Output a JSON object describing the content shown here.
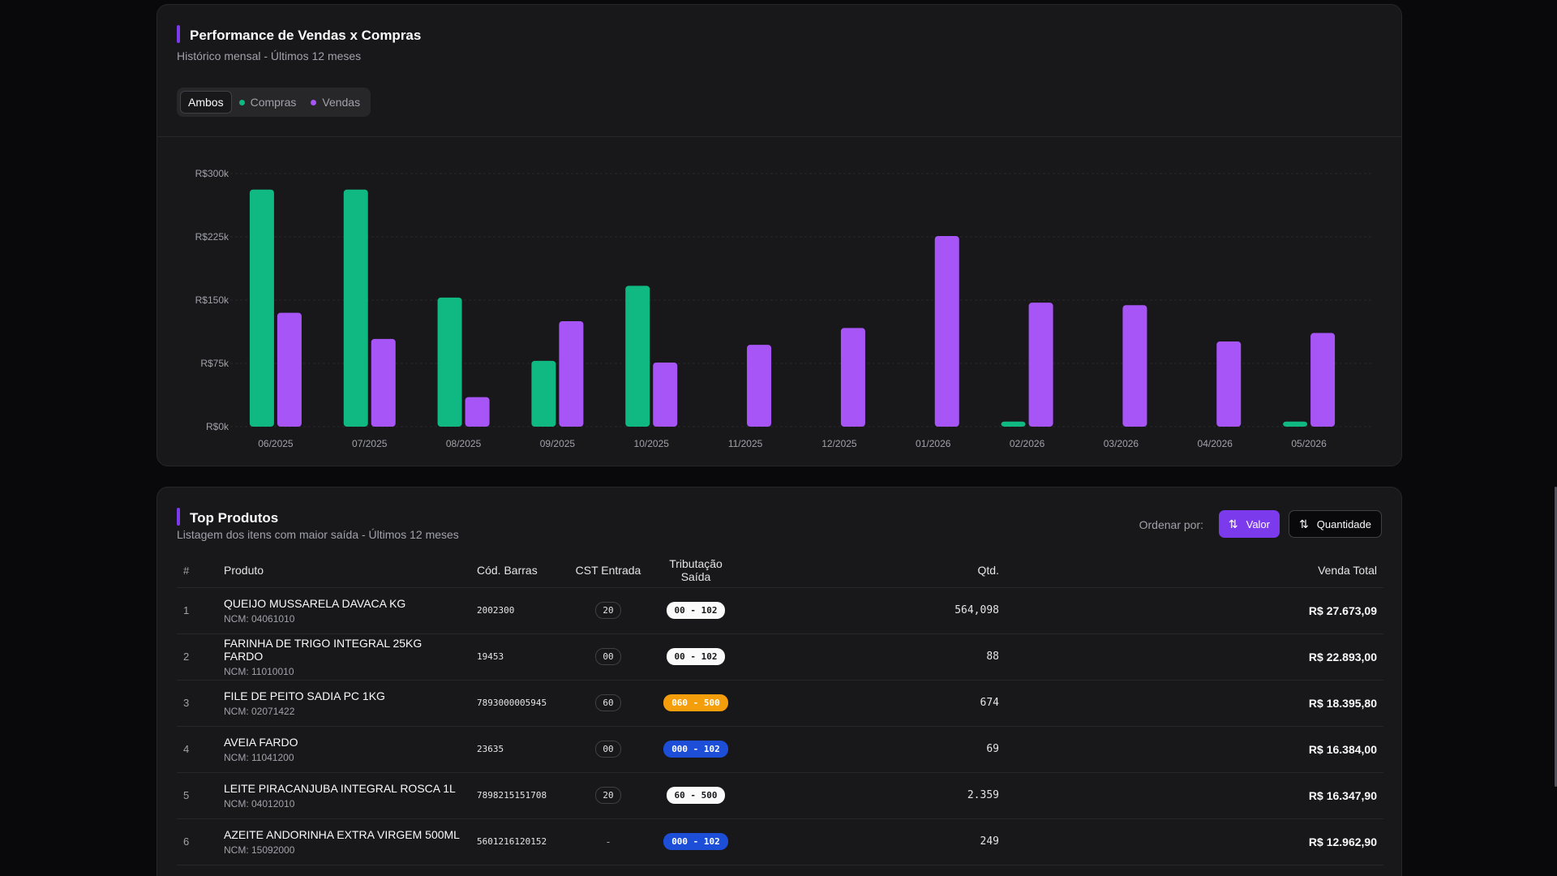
{
  "performance": {
    "title": "Performance de Vendas x Compras",
    "subtitle": "Histórico mensal - Últimos 12 meses",
    "toggle": [
      {
        "label": "Ambos",
        "active": true
      },
      {
        "label": "Compras",
        "color": "#10b981"
      },
      {
        "label": "Vendas",
        "color": "#a855f7"
      }
    ]
  },
  "chart_data": {
    "type": "bar",
    "categories": [
      "06/2025",
      "07/2025",
      "08/2025",
      "09/2025",
      "10/2025",
      "11/2025",
      "12/2025",
      "01/2026",
      "02/2026",
      "03/2026",
      "04/2026",
      "05/2026"
    ],
    "series": [
      {
        "name": "Compras",
        "color": "#10b981",
        "values": [
          281000,
          281000,
          153000,
          78000,
          167000,
          0,
          0,
          0,
          6000,
          0,
          0,
          6000
        ]
      },
      {
        "name": "Vendas",
        "color": "#a855f7",
        "values": [
          135000,
          104000,
          35000,
          125000,
          76000,
          97000,
          117000,
          226000,
          147000,
          144000,
          101000,
          111000
        ]
      }
    ],
    "yticks": [
      "R$300k",
      "R$225k",
      "R$150k",
      "R$75k",
      "R$0k"
    ],
    "ylim": [
      0,
      300000
    ],
    "grid": true
  },
  "top_products": {
    "title": "Top Produtos",
    "subtitle": "Listagem dos itens com maior saída - Últimos 12 meses",
    "sort_label": "Ordenar por:",
    "sort_valor": "Valor",
    "sort_quantidade": "Quantidade",
    "columns": {
      "idx": "#",
      "produto": "Produto",
      "barras": "Cód. Barras",
      "cst": "CST Entrada",
      "trib": "Tributação Saída",
      "qtd": "Qtd.",
      "total": "Venda Total"
    },
    "rows": [
      {
        "idx": "1",
        "name": "QUEIJO MUSSARELA DAVACA KG",
        "ncm": "NCM: 04061010",
        "barcode": "2002300",
        "cst": "20",
        "trib": "00 - 102",
        "trib_bg": "#fafafa",
        "trib_fg": "#18181b",
        "qtd": "564,098",
        "total": "R$ 27.673,09"
      },
      {
        "idx": "2",
        "name": "FARINHA DE TRIGO INTEGRAL 25KG FARDO",
        "ncm": "NCM: 11010010",
        "barcode": "19453",
        "cst": "00",
        "trib": "00 - 102",
        "trib_bg": "#fafafa",
        "trib_fg": "#18181b",
        "qtd": "88",
        "total": "R$ 22.893,00"
      },
      {
        "idx": "3",
        "name": "FILE DE PEITO SADIA PC 1KG",
        "ncm": "NCM: 02071422",
        "barcode": "7893000005945",
        "cst": "60",
        "trib": "060 - 500",
        "trib_bg": "#f59e0b",
        "trib_fg": "#ffffff",
        "qtd": "674",
        "total": "R$ 18.395,80"
      },
      {
        "idx": "4",
        "name": "AVEIA FARDO",
        "ncm": "NCM: 11041200",
        "barcode": "23635",
        "cst": "00",
        "trib": "000 - 102",
        "trib_bg": "#1d4ed8",
        "trib_fg": "#ffffff",
        "qtd": "69",
        "total": "R$ 16.384,00"
      },
      {
        "idx": "5",
        "name": "LEITE PIRACANJUBA INTEGRAL ROSCA 1L",
        "ncm": "NCM: 04012010",
        "barcode": "7898215151708",
        "cst": "20",
        "trib": "60 - 500",
        "trib_bg": "#fafafa",
        "trib_fg": "#18181b",
        "qtd": "2.359",
        "total": "R$ 16.347,90"
      },
      {
        "idx": "6",
        "name": "AZEITE ANDORINHA EXTRA VIRGEM 500ML",
        "ncm": "NCM: 15092000",
        "barcode": "5601216120152",
        "cst": "-",
        "trib": "000 - 102",
        "trib_bg": "#1d4ed8",
        "trib_fg": "#ffffff",
        "qtd": "249",
        "total": "R$ 12.962,90"
      }
    ]
  }
}
